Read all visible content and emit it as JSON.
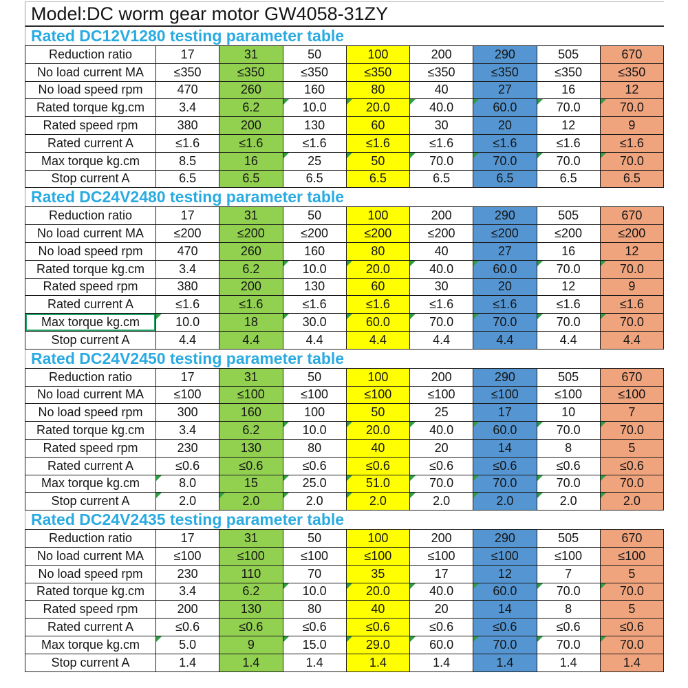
{
  "page": {
    "title": "Model:DC worm gear motor GW4058-31ZY"
  },
  "colors": {
    "section_title": "#29abe2",
    "column_highlights": {
      "1": "#92d050",
      "3": "#ffff00",
      "5": "#5596d2",
      "7": "#f0a47e"
    },
    "corner_marker": "#2f9e44",
    "selected_cell_outline": "#21a366",
    "grid_line": "#1a1a1a"
  },
  "tables": [
    {
      "title": "Rated DC12V1280 testing parameter table",
      "rows": [
        {
          "label": "Reduction ratio",
          "cells": [
            "17",
            "31",
            "50",
            "100",
            "200",
            "290",
            "505",
            "670"
          ],
          "markers": []
        },
        {
          "label": "No load current MA",
          "cells": [
            "≤350",
            "≤350",
            "≤350",
            "≤350",
            "≤350",
            "≤350",
            "≤350",
            "≤350"
          ],
          "markers": []
        },
        {
          "label": "No load speed rpm",
          "cells": [
            "470",
            "260",
            "160",
            "80",
            "40",
            "27",
            "16",
            "12"
          ],
          "markers": []
        },
        {
          "label": "Rated torque kg.cm",
          "cells": [
            "3.4",
            "6.2",
            "10.0",
            "20.0",
            "40.0",
            "60.0",
            "70.0",
            "70.0"
          ],
          "markers": [
            2,
            3,
            4,
            5,
            6,
            7
          ]
        },
        {
          "label": "Rated speed rpm",
          "cells": [
            "380",
            "200",
            "130",
            "60",
            "30",
            "20",
            "12",
            "9"
          ],
          "markers": []
        },
        {
          "label": "Rated current A",
          "cells": [
            "≤1.6",
            "≤1.6",
            "≤1.6",
            "≤1.6",
            "≤1.6",
            "≤1.6",
            "≤1.6",
            "≤1.6"
          ],
          "markers": []
        },
        {
          "label": "Max torque kg.cm",
          "cells": [
            "8.5",
            "16",
            "25",
            "50",
            "70.0",
            "70.0",
            "70.0",
            "70.0"
          ],
          "markers": [
            2,
            3,
            4,
            5,
            6,
            7
          ]
        },
        {
          "label": "Stop current A",
          "cells": [
            "6.5",
            "6.5",
            "6.5",
            "6.5",
            "6.5",
            "6.5",
            "6.5",
            "6.5"
          ],
          "markers": []
        }
      ]
    },
    {
      "title": "Rated DC24V2480 testing parameter table",
      "selected_label_row": 6,
      "rows": [
        {
          "label": "Reduction ratio",
          "cells": [
            "17",
            "31",
            "50",
            "100",
            "200",
            "290",
            "505",
            "670"
          ],
          "markers": []
        },
        {
          "label": "No load current MA",
          "cells": [
            "≤200",
            "≤200",
            "≤200",
            "≤200",
            "≤200",
            "≤200",
            "≤200",
            "≤200"
          ],
          "markers": []
        },
        {
          "label": "No load speed rpm",
          "cells": [
            "470",
            "260",
            "160",
            "80",
            "40",
            "27",
            "16",
            "12"
          ],
          "markers": []
        },
        {
          "label": "Rated torque kg.cm",
          "cells": [
            "3.4",
            "6.2",
            "10.0",
            "20.0",
            "40.0",
            "60.0",
            "70.0",
            "70.0"
          ],
          "markers": [
            2,
            3,
            4,
            5,
            6,
            7
          ]
        },
        {
          "label": "Rated speed rpm",
          "cells": [
            "380",
            "200",
            "130",
            "60",
            "30",
            "20",
            "12",
            "9"
          ],
          "markers": []
        },
        {
          "label": "Rated current A",
          "cells": [
            "≤1.6",
            "≤1.6",
            "≤1.6",
            "≤1.6",
            "≤1.6",
            "≤1.6",
            "≤1.6",
            "≤1.6"
          ],
          "markers": []
        },
        {
          "label": "Max torque kg.cm",
          "cells": [
            "10.0",
            "18",
            "30.0",
            "60.0",
            "70.0",
            "70.0",
            "70.0",
            "70.0"
          ],
          "markers": [
            0,
            2,
            3,
            4,
            5,
            6,
            7
          ]
        },
        {
          "label": "Stop current A",
          "cells": [
            "4.4",
            "4.4",
            "4.4",
            "4.4",
            "4.4",
            "4.4",
            "4.4",
            "4.4"
          ],
          "markers": []
        }
      ]
    },
    {
      "title": "Rated DC24V2450 testing parameter table",
      "rows": [
        {
          "label": "Reduction ratio",
          "cells": [
            "17",
            "31",
            "50",
            "100",
            "200",
            "290",
            "505",
            "670"
          ],
          "markers": []
        },
        {
          "label": "No load current MA",
          "cells": [
            "≤100",
            "≤100",
            "≤100",
            "≤100",
            "≤100",
            "≤100",
            "≤100",
            "≤100"
          ],
          "markers": []
        },
        {
          "label": "No load speed rpm",
          "cells": [
            "300",
            "160",
            "100",
            "50",
            "25",
            "17",
            "10",
            "7"
          ],
          "markers": []
        },
        {
          "label": "Rated torque kg.cm",
          "cells": [
            "3.4",
            "6.2",
            "10.0",
            "20.0",
            "40.0",
            "60.0",
            "70.0",
            "70.0"
          ],
          "markers": [
            2,
            3,
            4,
            5,
            6,
            7
          ]
        },
        {
          "label": "Rated speed rpm",
          "cells": [
            "230",
            "130",
            "80",
            "40",
            "20",
            "14",
            "8",
            "5"
          ],
          "markers": []
        },
        {
          "label": "Rated current A",
          "cells": [
            "≤0.6",
            "≤0.6",
            "≤0.6",
            "≤0.6",
            "≤0.6",
            "≤0.6",
            "≤0.6",
            "≤0.6"
          ],
          "markers": []
        },
        {
          "label": "Max torque kg.cm",
          "cells": [
            "8.0",
            "15",
            "25.0",
            "51.0",
            "70.0",
            "70.0",
            "70.0",
            "70.0"
          ],
          "markers": [
            0,
            2,
            3,
            4,
            5,
            6,
            7
          ]
        },
        {
          "label": "Stop current A",
          "cells": [
            "2.0",
            "2.0",
            "2.0",
            "2.0",
            "2.0",
            "2.0",
            "2.0",
            "2.0"
          ],
          "markers": [
            0,
            1,
            2,
            3,
            4,
            5,
            6,
            7
          ]
        }
      ]
    },
    {
      "title": "Rated DC24V2435 testing parameter table",
      "rows": [
        {
          "label": "Reduction ratio",
          "cells": [
            "17",
            "31",
            "50",
            "100",
            "200",
            "290",
            "505",
            "670"
          ],
          "markers": []
        },
        {
          "label": "No load current MA",
          "cells": [
            "≤100",
            "≤100",
            "≤100",
            "≤100",
            "≤100",
            "≤100",
            "≤100",
            "≤100"
          ],
          "markers": []
        },
        {
          "label": "No load speed rpm",
          "cells": [
            "230",
            "110",
            "70",
            "35",
            "17",
            "12",
            "7",
            "5"
          ],
          "markers": []
        },
        {
          "label": "Rated torque kg.cm",
          "cells": [
            "3.4",
            "6.2",
            "10.0",
            "20.0",
            "40.0",
            "60.0",
            "70.0",
            "70.0"
          ],
          "markers": [
            2,
            3,
            4,
            5,
            6,
            7
          ]
        },
        {
          "label": "Rated speed rpm",
          "cells": [
            "200",
            "130",
            "80",
            "40",
            "20",
            "14",
            "8",
            "5"
          ],
          "markers": []
        },
        {
          "label": "Rated current A",
          "cells": [
            "≤0.6",
            "≤0.6",
            "≤0.6",
            "≤0.6",
            "≤0.6",
            "≤0.6",
            "≤0.6",
            "≤0.6"
          ],
          "markers": []
        },
        {
          "label": "Max torque kg.cm",
          "cells": [
            "5.0",
            "9",
            "15.0",
            "29.0",
            "60.0",
            "70.0",
            "70.0",
            "70.0"
          ],
          "markers": [
            0,
            2,
            3,
            4,
            5,
            6,
            7
          ]
        },
        {
          "label": "Stop current A",
          "cells": [
            "1.4",
            "1.4",
            "1.4",
            "1.4",
            "1.4",
            "1.4",
            "1.4",
            "1.4"
          ],
          "markers": []
        }
      ]
    }
  ]
}
